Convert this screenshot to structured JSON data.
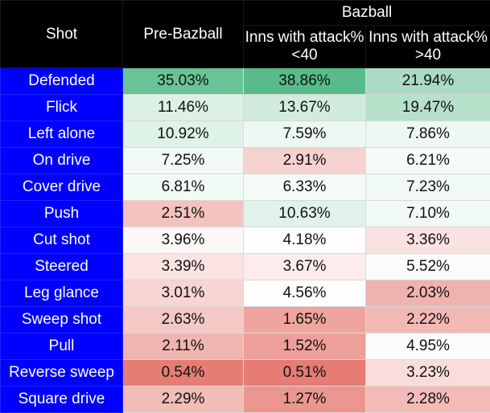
{
  "colors": {
    "header_bg": "#000000",
    "header_text": "#ffffff",
    "label_bg": "#0000ff",
    "label_text": "#ffffff",
    "high": "#57bb8a",
    "mid": "#ffffff",
    "low": "#e67c73"
  },
  "headers": {
    "shot": "Shot",
    "pre_bazball": "Pre-Bazball",
    "bazball_group": "Bazball",
    "bazball_low": "Inns with attack% <40",
    "bazball_high": "Inns with attack% >40"
  },
  "chart_data": {
    "type": "heatmap",
    "columns": [
      "Pre-Bazball",
      "Inns with attack% <40",
      "Inns with attack% >40"
    ],
    "rows": [
      {
        "shot": "Defended",
        "values": [
          "35.03%",
          "38.86%",
          "21.94%"
        ]
      },
      {
        "shot": "Flick",
        "values": [
          "11.46%",
          "13.67%",
          "19.47%"
        ]
      },
      {
        "shot": "Left alone",
        "values": [
          "10.92%",
          "7.59%",
          "7.86%"
        ]
      },
      {
        "shot": "On drive",
        "values": [
          "7.25%",
          "2.91%",
          "6.21%"
        ]
      },
      {
        "shot": "Cover drive",
        "values": [
          "6.81%",
          "6.33%",
          "7.23%"
        ]
      },
      {
        "shot": "Push",
        "values": [
          "2.51%",
          "10.63%",
          "7.10%"
        ]
      },
      {
        "shot": "Cut shot",
        "values": [
          "3.96%",
          "4.18%",
          "3.36%"
        ]
      },
      {
        "shot": "Steered",
        "values": [
          "3.39%",
          "3.67%",
          "5.52%"
        ]
      },
      {
        "shot": "Leg glance",
        "values": [
          "3.01%",
          "4.56%",
          "2.03%"
        ]
      },
      {
        "shot": "Sweep shot",
        "values": [
          "2.63%",
          "1.65%",
          "2.22%"
        ]
      },
      {
        "shot": "Pull",
        "values": [
          "2.11%",
          "1.52%",
          "4.95%"
        ]
      },
      {
        "shot": "Reverse sweep",
        "values": [
          "0.54%",
          "0.51%",
          "3.23%"
        ]
      },
      {
        "shot": "Square drive",
        "values": [
          "2.29%",
          "1.27%",
          "2.28%"
        ]
      }
    ]
  }
}
